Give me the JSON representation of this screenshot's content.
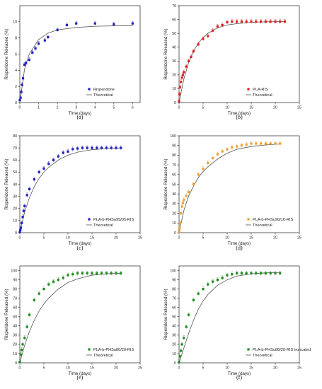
{
  "chart_data": [
    {
      "type": "scatter",
      "panel_label": "(a)",
      "xlabel": "Time (days)",
      "ylabel": "Risperidone Released (%)",
      "xlim": [
        0,
        6.4
      ],
      "ylim": [
        0,
        12
      ],
      "xticks": [
        0,
        1,
        2,
        3,
        4,
        5,
        6
      ],
      "yticks": [
        0,
        2,
        4,
        6,
        8,
        10
      ],
      "marker_color": "#1f1fbf",
      "marker": "square",
      "legend_position": "bottom-right",
      "series": [
        {
          "name": "Risperidone",
          "x": [
            0,
            0.04,
            0.08,
            0.12,
            0.17,
            0.25,
            0.33,
            0.5,
            0.67,
            0.83,
            1,
            1.33,
            1.5,
            2,
            2.5,
            3,
            4,
            5,
            6
          ],
          "y": [
            0.3,
            0.6,
            1.3,
            2.2,
            3.0,
            4.7,
            4.9,
            5.3,
            6.2,
            6.7,
            7.3,
            7.7,
            8.1,
            9.0,
            9.6,
            9.8,
            9.8,
            9.7,
            9.8
          ]
        },
        {
          "name": "Theoretical",
          "type": "line",
          "x": [
            0,
            0.25,
            0.5,
            1,
            1.5,
            2,
            3,
            4,
            5,
            6
          ],
          "y": [
            0,
            4.1,
            6.0,
            7.8,
            8.6,
            9.0,
            9.3,
            9.45,
            9.5,
            9.52
          ]
        }
      ]
    },
    {
      "type": "scatter",
      "panel_label": "(b)",
      "xlabel": "Time (days)",
      "ylabel": "Risperidone Released (%)",
      "xlim": [
        0,
        25
      ],
      "ylim": [
        0,
        70
      ],
      "xticks": [
        0,
        5,
        10,
        15,
        20,
        25
      ],
      "yticks": [
        0,
        10,
        20,
        30,
        40,
        50,
        60,
        70
      ],
      "marker_color": "#e11f1f",
      "marker": "square",
      "legend_position": "bottom-right",
      "series": [
        {
          "name": "PLA-RIS",
          "x": [
            0,
            0.1,
            0.2,
            0.4,
            0.6,
            0.8,
            1,
            1.5,
            2,
            2.5,
            3,
            4,
            5,
            6,
            7,
            8,
            9,
            10,
            11,
            12,
            13,
            14,
            15,
            16,
            17,
            18,
            19,
            20,
            21,
            22
          ],
          "y": [
            1,
            6,
            11,
            15,
            18,
            20,
            22,
            26,
            30,
            33,
            37,
            42,
            46,
            48,
            52,
            55,
            56,
            58,
            58.5,
            58.5,
            58.5,
            58.5,
            58.5,
            58.5,
            58.5,
            58.5,
            58.5,
            58.5,
            58.5,
            58.5
          ]
        },
        {
          "name": "Theoretical",
          "type": "line",
          "x": [
            0,
            1,
            2,
            3,
            4,
            5,
            6,
            8,
            10,
            12,
            15,
            18,
            22
          ],
          "y": [
            0,
            17,
            29,
            37,
            43,
            47,
            50,
            54,
            56,
            57,
            58,
            58.3,
            58.5
          ]
        }
      ]
    },
    {
      "type": "scatter",
      "panel_label": "(c)",
      "xlabel": "Time (days)",
      "ylabel": "Risperidone Released (%)",
      "xlim": [
        0,
        25
      ],
      "ylim": [
        0,
        80
      ],
      "xticks": [
        0,
        5,
        10,
        15,
        20,
        25
      ],
      "yticks": [
        0,
        10,
        20,
        30,
        40,
        50,
        60,
        70,
        80
      ],
      "marker_color": "#1f1fbf",
      "marker": "square",
      "legend_position": "bottom-right",
      "series": [
        {
          "name": "PLA-b-PHSu95/05-RIS",
          "x": [
            0,
            0.1,
            0.2,
            0.4,
            0.6,
            0.8,
            1,
            1.5,
            2,
            3,
            4,
            5,
            6,
            7,
            8,
            9,
            10,
            11,
            12,
            13,
            14,
            15,
            16,
            17,
            18,
            19,
            20,
            21
          ],
          "y": [
            0.5,
            2,
            4,
            8,
            13,
            18,
            22,
            31,
            36,
            44,
            50,
            53,
            57,
            60,
            63,
            66,
            67,
            69,
            69.5,
            70,
            70,
            70,
            70,
            70,
            70,
            70,
            70,
            70
          ]
        },
        {
          "name": "Theoretical",
          "type": "line",
          "x": [
            0,
            1,
            2,
            3,
            4,
            5,
            6,
            8,
            10,
            12,
            15,
            18,
            21
          ],
          "y": [
            0,
            17,
            29,
            38,
            45,
            50,
            54,
            60,
            64,
            66.5,
            68.5,
            69.5,
            70
          ]
        }
      ]
    },
    {
      "type": "scatter",
      "panel_label": "(d)",
      "xlabel": "Time (days)",
      "ylabel": "Risperidone Released (%)",
      "xlim": [
        0,
        25
      ],
      "ylim": [
        0,
        100
      ],
      "xticks": [
        0,
        5,
        10,
        15,
        20,
        25
      ],
      "yticks": [
        0,
        10,
        20,
        30,
        40,
        50,
        60,
        70,
        80,
        90,
        100
      ],
      "marker_color": "#f0a030",
      "marker": "square",
      "legend_position": "bottom-right",
      "series": [
        {
          "name": "PLA-b-PHSu90/10-RIS",
          "x": [
            0,
            0.1,
            0.2,
            0.4,
            0.6,
            0.8,
            1,
            1.5,
            2,
            3,
            4,
            5,
            6,
            7,
            8,
            9,
            10,
            11,
            12,
            13,
            14,
            15,
            16,
            17,
            18,
            19,
            20,
            21
          ],
          "y": [
            1,
            5,
            10,
            20,
            27,
            31,
            34,
            38,
            42,
            50,
            60,
            66,
            72,
            77,
            81,
            84,
            86,
            88,
            89,
            90,
            91,
            92,
            92,
            92,
            92,
            92,
            92,
            92
          ]
        },
        {
          "name": "Theoretical",
          "type": "line",
          "x": [
            0,
            1,
            2,
            3,
            4,
            5,
            6,
            8,
            10,
            12,
            15,
            18,
            21
          ],
          "y": [
            0,
            23,
            38,
            48,
            57,
            63,
            68,
            76,
            82,
            86,
            89,
            90.5,
            91.5
          ]
        }
      ]
    },
    {
      "type": "scatter",
      "panel_label": "(e)",
      "xlabel": "Time (days)",
      "ylabel": "Risperidone Released (%)",
      "xlim": [
        0,
        25
      ],
      "ylim": [
        0,
        105
      ],
      "xticks": [
        0,
        5,
        10,
        15,
        20,
        25
      ],
      "yticks": [
        0,
        10,
        20,
        30,
        40,
        50,
        60,
        70,
        80,
        90,
        100
      ],
      "marker_color": "#1e8c1e",
      "marker": "square",
      "legend_position": "bottom-right",
      "series": [
        {
          "name": "PLA-b-PHSu80/20-RIS",
          "x": [
            0,
            0.2,
            0.4,
            0.6,
            1,
            1.5,
            2,
            3,
            4,
            5,
            6,
            7,
            8,
            9,
            10,
            11,
            12,
            13,
            14,
            15,
            16,
            17,
            18,
            19,
            20,
            21
          ],
          "y": [
            1,
            9,
            14,
            20,
            27,
            39,
            52,
            68,
            75,
            80,
            85,
            88,
            90,
            92,
            95,
            96,
            97,
            97,
            97,
            97,
            97,
            97,
            97,
            97,
            97,
            97
          ]
        },
        {
          "name": "Theoretical",
          "type": "line",
          "x": [
            0,
            1,
            2,
            3,
            4,
            5,
            6,
            8,
            10,
            12,
            15,
            18,
            21
          ],
          "y": [
            0,
            19,
            34,
            46,
            56,
            64,
            70,
            80,
            87,
            91,
            95,
            96.5,
            97
          ]
        }
      ]
    },
    {
      "type": "scatter",
      "panel_label": "(f)",
      "xlabel": "Time (days)",
      "ylabel": "Risperidone Released (%)",
      "xlim": [
        0,
        25
      ],
      "ylim": [
        0,
        105
      ],
      "xticks": [
        0,
        5,
        10,
        15,
        20,
        25
      ],
      "yticks": [
        0,
        10,
        20,
        30,
        40,
        50,
        60,
        70,
        80,
        90,
        100
      ],
      "marker_color": "#1e8c1e",
      "marker": "square",
      "legend_position": "bottom-right",
      "series": [
        {
          "name": "PLA-b-PHSu80/20-RIS truncated",
          "x": [
            0,
            0.2,
            0.4,
            0.6,
            1,
            1.5,
            2,
            3,
            4,
            5,
            6,
            7,
            8,
            9,
            10,
            11,
            12,
            13,
            14,
            15,
            16,
            17,
            18,
            19,
            20,
            21
          ],
          "y": [
            1,
            7,
            13,
            20,
            27,
            39,
            52,
            68,
            75,
            80,
            85,
            88,
            90,
            92,
            95,
            96,
            97,
            97,
            97,
            97,
            97,
            97,
            97,
            97,
            97,
            97
          ]
        },
        {
          "name": "Theoretical",
          "type": "line",
          "x": [
            0,
            1,
            2,
            3,
            4,
            5,
            6,
            8,
            10,
            12,
            15,
            18,
            21
          ],
          "y": [
            0,
            16,
            32,
            46,
            58,
            67,
            74,
            84,
            90,
            94,
            96.5,
            97.5,
            98
          ]
        }
      ]
    }
  ]
}
